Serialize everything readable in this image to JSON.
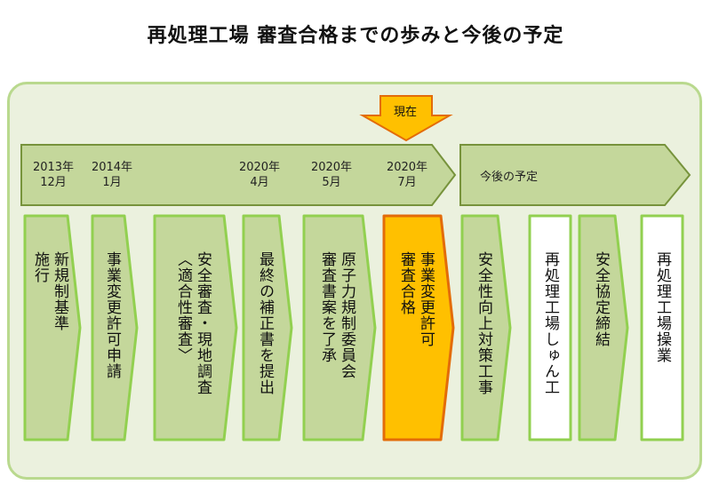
{
  "title": "再処理工場 審査合格までの歩みと今後の予定",
  "colors": {
    "frame_border": "#b9d98e",
    "frame_fill": "#ebf1de",
    "arrow_fill": "#c4d79b",
    "arrow_stroke": "#77933c",
    "box_border": "#92d050",
    "current_fill": "#ffc000",
    "current_border": "#e36c09",
    "plain_fill": "#ffffff"
  },
  "now_marker": {
    "label": "現在"
  },
  "past_band": {
    "dates": [
      {
        "year": "2013年",
        "month": "12月"
      },
      {
        "year": "2014年",
        "month": "1月"
      },
      {
        "year": "2020年",
        "month": "4月"
      },
      {
        "year": "2020年",
        "month": "5月"
      },
      {
        "year": "2020年",
        "month": "7月"
      }
    ]
  },
  "future_band": {
    "label": "今後の予定"
  },
  "steps": [
    {
      "col1": "新規制基準",
      "col2": "施行",
      "style": "green"
    },
    {
      "col1": "事業変更許可申請",
      "col2": "",
      "style": "green"
    },
    {
      "col1": "安全審査・現地調査",
      "col2": "〈適合性審査〉",
      "style": "green"
    },
    {
      "col1": "最終の補正書を提出",
      "col2": "",
      "style": "green"
    },
    {
      "col1": "原子力規制委員会",
      "col2": "審査書案を了承",
      "style": "green"
    },
    {
      "col1": "事業変更許可",
      "col2": "審査合格",
      "style": "current"
    },
    {
      "col1": "安全性向上対策工事",
      "col2": "",
      "style": "green"
    },
    {
      "col1": "再処理工場しゅん工",
      "col2": "",
      "style": "white"
    },
    {
      "col1": "安全協定締結",
      "col2": "",
      "style": "green"
    },
    {
      "col1": "再処理工場操業",
      "col2": "",
      "style": "white"
    }
  ]
}
